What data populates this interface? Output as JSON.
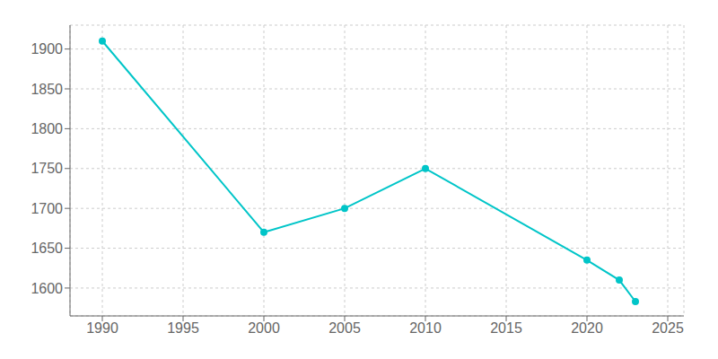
{
  "chart_data": {
    "type": "line",
    "x": [
      1990,
      2000,
      2005,
      2010,
      2020,
      2022,
      2023
    ],
    "values": [
      1910,
      1670,
      1700,
      1750,
      1635,
      1610,
      1583
    ],
    "color": "#00C5C8",
    "marker": "circle",
    "xlim": [
      1988,
      2026
    ],
    "ylim": [
      1565,
      1930
    ],
    "xticks": [
      1990,
      1995,
      2000,
      2005,
      2010,
      2015,
      2020,
      2025
    ],
    "yticks": [
      1600,
      1650,
      1700,
      1750,
      1800,
      1850,
      1900
    ],
    "grid": true
  }
}
